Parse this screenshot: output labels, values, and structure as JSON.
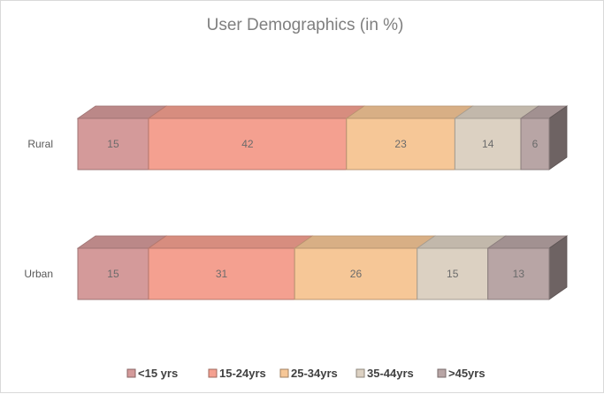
{
  "chart_data": {
    "type": "bar",
    "orientation": "horizontal",
    "stacked": "100%",
    "style_3d": true,
    "title": "User Demographics (in %)",
    "categories": [
      "Rural",
      "Urban"
    ],
    "series": [
      {
        "name": "<15 yrs",
        "values": [
          15,
          15
        ],
        "color": "#d49a9a"
      },
      {
        "name": "15-24yrs",
        "values": [
          42,
          31
        ],
        "color": "#f4a090"
      },
      {
        "name": "25-34yrs",
        "values": [
          23,
          26
        ],
        "color": "#f6c797"
      },
      {
        "name": "35-44yrs",
        "values": [
          14,
          15
        ],
        "color": "#dcd1c2"
      },
      {
        "name": ">45yrs",
        "values": [
          6,
          13
        ],
        "color": "#b8a5a5"
      }
    ],
    "xlim": [
      0,
      100
    ],
    "grid": false,
    "legend_position": "bottom",
    "data_labels": true
  }
}
